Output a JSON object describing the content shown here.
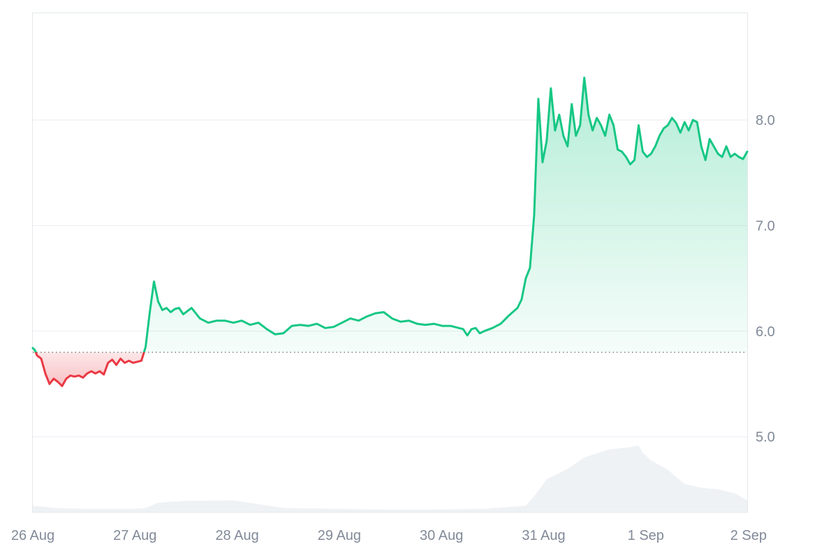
{
  "chart_data": {
    "type": "area",
    "title": "",
    "xlabel": "",
    "ylabel": "",
    "x_ticks": [
      "26 Aug",
      "27 Aug",
      "28 Aug",
      "29 Aug",
      "30 Aug",
      "31 Aug",
      "1 Sep",
      "2 Sep"
    ],
    "y_ticks": [
      "5.0",
      "6.0",
      "7.0",
      "8.0"
    ],
    "ylim": [
      4.3,
      9.0
    ],
    "y_axis_position": "right",
    "grid": "horizontal",
    "baseline": 5.8,
    "colors": {
      "above_line": "#16c784",
      "above_fill": "#16c784",
      "below_line": "#ea3943",
      "below_fill": "#ea3943",
      "grid": "#eceef2",
      "border": "#e5e7eb",
      "baseline": "#555555",
      "volume": "#eff2f5",
      "tick_text": "#818a98"
    },
    "series": [
      {
        "values": [
          [
            "2024-08-26 00:00",
            5.84
          ],
          [
            "2024-08-26 00:30",
            5.82
          ],
          [
            "2024-08-26 01:00",
            5.77
          ],
          [
            "2024-08-26 02:00",
            5.74
          ],
          [
            "2024-08-26 03:00",
            5.6
          ],
          [
            "2024-08-26 04:00",
            5.5
          ],
          [
            "2024-08-26 05:00",
            5.55
          ],
          [
            "2024-08-26 06:00",
            5.52
          ],
          [
            "2024-08-26 07:00",
            5.48
          ],
          [
            "2024-08-26 08:00",
            5.55
          ],
          [
            "2024-08-26 09:00",
            5.58
          ],
          [
            "2024-08-26 10:00",
            5.57
          ],
          [
            "2024-08-26 11:00",
            5.58
          ],
          [
            "2024-08-26 12:00",
            5.56
          ],
          [
            "2024-08-26 13:00",
            5.6
          ],
          [
            "2024-08-26 14:00",
            5.62
          ],
          [
            "2024-08-26 15:00",
            5.6
          ],
          [
            "2024-08-26 16:00",
            5.62
          ],
          [
            "2024-08-26 17:00",
            5.59
          ],
          [
            "2024-08-26 18:00",
            5.7
          ],
          [
            "2024-08-26 19:00",
            5.73
          ],
          [
            "2024-08-26 20:00",
            5.68
          ],
          [
            "2024-08-26 21:00",
            5.74
          ],
          [
            "2024-08-26 22:00",
            5.7
          ],
          [
            "2024-08-26 23:00",
            5.72
          ],
          [
            "2024-08-27 00:00",
            5.7
          ],
          [
            "2024-08-27 01:00",
            5.71
          ],
          [
            "2024-08-27 02:00",
            5.72
          ],
          [
            "2024-08-27 03:00",
            5.85
          ],
          [
            "2024-08-27 04:00",
            6.18
          ],
          [
            "2024-08-27 05:00",
            6.47
          ],
          [
            "2024-08-27 06:00",
            6.28
          ],
          [
            "2024-08-27 07:00",
            6.2
          ],
          [
            "2024-08-27 08:00",
            6.22
          ],
          [
            "2024-08-27 09:00",
            6.18
          ],
          [
            "2024-08-27 10:00",
            6.21
          ],
          [
            "2024-08-27 11:00",
            6.22
          ],
          [
            "2024-08-27 12:00",
            6.16
          ],
          [
            "2024-08-27 14:00",
            6.22
          ],
          [
            "2024-08-27 16:00",
            6.12
          ],
          [
            "2024-08-27 18:00",
            6.08
          ],
          [
            "2024-08-27 20:00",
            6.1
          ],
          [
            "2024-08-27 22:00",
            6.1
          ],
          [
            "2024-08-28 00:00",
            6.08
          ],
          [
            "2024-08-28 02:00",
            6.1
          ],
          [
            "2024-08-28 04:00",
            6.06
          ],
          [
            "2024-08-28 06:00",
            6.08
          ],
          [
            "2024-08-28 08:00",
            6.02
          ],
          [
            "2024-08-28 10:00",
            5.97
          ],
          [
            "2024-08-28 12:00",
            5.98
          ],
          [
            "2024-08-28 14:00",
            6.05
          ],
          [
            "2024-08-28 16:00",
            6.06
          ],
          [
            "2024-08-28 18:00",
            6.05
          ],
          [
            "2024-08-28 20:00",
            6.07
          ],
          [
            "2024-08-28 22:00",
            6.03
          ],
          [
            "2024-08-29 00:00",
            6.04
          ],
          [
            "2024-08-29 02:00",
            6.08
          ],
          [
            "2024-08-29 04:00",
            6.12
          ],
          [
            "2024-08-29 06:00",
            6.1
          ],
          [
            "2024-08-29 08:00",
            6.14
          ],
          [
            "2024-08-29 10:00",
            6.17
          ],
          [
            "2024-08-29 12:00",
            6.18
          ],
          [
            "2024-08-29 14:00",
            6.12
          ],
          [
            "2024-08-29 16:00",
            6.09
          ],
          [
            "2024-08-29 18:00",
            6.1
          ],
          [
            "2024-08-29 20:00",
            6.07
          ],
          [
            "2024-08-29 22:00",
            6.06
          ],
          [
            "2024-08-30 00:00",
            6.07
          ],
          [
            "2024-08-30 02:00",
            6.05
          ],
          [
            "2024-08-30 04:00",
            6.05
          ],
          [
            "2024-08-30 06:00",
            6.03
          ],
          [
            "2024-08-30 07:00",
            6.02
          ],
          [
            "2024-08-30 08:00",
            5.96
          ],
          [
            "2024-08-30 09:00",
            6.02
          ],
          [
            "2024-08-30 10:00",
            6.03
          ],
          [
            "2024-08-30 11:00",
            5.98
          ],
          [
            "2024-08-30 12:00",
            6.0
          ],
          [
            "2024-08-30 14:00",
            6.03
          ],
          [
            "2024-08-30 16:00",
            6.07
          ],
          [
            "2024-08-30 18:00",
            6.15
          ],
          [
            "2024-08-30 20:00",
            6.22
          ],
          [
            "2024-08-30 21:00",
            6.3
          ],
          [
            "2024-08-30 22:00",
            6.5
          ],
          [
            "2024-08-30 23:00",
            6.6
          ],
          [
            "2024-08-31 00:00",
            7.1
          ],
          [
            "2024-08-31 01:00",
            8.2
          ],
          [
            "2024-08-31 02:00",
            7.6
          ],
          [
            "2024-08-31 03:00",
            7.8
          ],
          [
            "2024-08-31 04:00",
            8.3
          ],
          [
            "2024-08-31 05:00",
            7.9
          ],
          [
            "2024-08-31 06:00",
            8.05
          ],
          [
            "2024-08-31 07:00",
            7.85
          ],
          [
            "2024-08-31 08:00",
            7.75
          ],
          [
            "2024-08-31 09:00",
            8.15
          ],
          [
            "2024-08-31 10:00",
            7.85
          ],
          [
            "2024-08-31 11:00",
            7.95
          ],
          [
            "2024-08-31 12:00",
            8.4
          ],
          [
            "2024-08-31 13:00",
            8.05
          ],
          [
            "2024-08-31 14:00",
            7.9
          ],
          [
            "2024-08-31 15:00",
            8.02
          ],
          [
            "2024-08-31 16:00",
            7.95
          ],
          [
            "2024-08-31 17:00",
            7.85
          ],
          [
            "2024-08-31 18:00",
            8.05
          ],
          [
            "2024-08-31 19:00",
            7.95
          ],
          [
            "2024-08-31 20:00",
            7.72
          ],
          [
            "2024-08-31 21:00",
            7.7
          ],
          [
            "2024-08-31 22:00",
            7.65
          ],
          [
            "2024-08-31 23:00",
            7.58
          ],
          [
            "2024-09-01 00:00",
            7.62
          ],
          [
            "2024-09-01 01:00",
            7.95
          ],
          [
            "2024-09-01 02:00",
            7.7
          ],
          [
            "2024-09-01 03:00",
            7.65
          ],
          [
            "2024-09-01 04:00",
            7.68
          ],
          [
            "2024-09-01 05:00",
            7.75
          ],
          [
            "2024-09-01 06:00",
            7.85
          ],
          [
            "2024-09-01 07:00",
            7.92
          ],
          [
            "2024-09-01 08:00",
            7.95
          ],
          [
            "2024-09-01 09:00",
            8.02
          ],
          [
            "2024-09-01 10:00",
            7.97
          ],
          [
            "2024-09-01 11:00",
            7.88
          ],
          [
            "2024-09-01 12:00",
            7.98
          ],
          [
            "2024-09-01 13:00",
            7.9
          ],
          [
            "2024-09-01 14:00",
            8.0
          ],
          [
            "2024-09-01 15:00",
            7.98
          ],
          [
            "2024-09-01 16:00",
            7.75
          ],
          [
            "2024-09-01 17:00",
            7.62
          ],
          [
            "2024-09-01 18:00",
            7.82
          ],
          [
            "2024-09-01 19:00",
            7.75
          ],
          [
            "2024-09-01 20:00",
            7.68
          ],
          [
            "2024-09-01 21:00",
            7.65
          ],
          [
            "2024-09-01 22:00",
            7.75
          ],
          [
            "2024-09-01 23:00",
            7.65
          ],
          [
            "2024-09-02 00:00",
            7.68
          ],
          [
            "2024-09-02 01:00",
            7.65
          ],
          [
            "2024-09-02 02:00",
            7.63
          ],
          [
            "2024-09-02 03:00",
            7.7
          ]
        ]
      }
    ],
    "volume_relative": [
      [
        "2024-08-26 00:00",
        0.08
      ],
      [
        "2024-08-26 06:00",
        0.05
      ],
      [
        "2024-08-26 12:00",
        0.04
      ],
      [
        "2024-08-27 00:00",
        0.04
      ],
      [
        "2024-08-27 03:00",
        0.05
      ],
      [
        "2024-08-27 06:00",
        0.12
      ],
      [
        "2024-08-27 12:00",
        0.14
      ],
      [
        "2024-08-28 00:00",
        0.15
      ],
      [
        "2024-08-28 06:00",
        0.1
      ],
      [
        "2024-08-28 12:00",
        0.05
      ],
      [
        "2024-08-29 00:00",
        0.04
      ],
      [
        "2024-08-29 12:00",
        0.03
      ],
      [
        "2024-08-30 00:00",
        0.03
      ],
      [
        "2024-08-30 12:00",
        0.04
      ],
      [
        "2024-08-30 22:00",
        0.08
      ],
      [
        "2024-08-31 00:00",
        0.2
      ],
      [
        "2024-08-31 03:00",
        0.42
      ],
      [
        "2024-08-31 08:00",
        0.55
      ],
      [
        "2024-08-31 12:00",
        0.7
      ],
      [
        "2024-08-31 18:00",
        0.8
      ],
      [
        "2024-08-31 23:00",
        0.83
      ],
      [
        "2024-09-01 01:00",
        0.85
      ],
      [
        "2024-09-01 02:00",
        0.76
      ],
      [
        "2024-09-01 04:00",
        0.66
      ],
      [
        "2024-09-01 08:00",
        0.54
      ],
      [
        "2024-09-01 12:00",
        0.36
      ],
      [
        "2024-09-01 16:00",
        0.31
      ],
      [
        "2024-09-01 20:00",
        0.29
      ],
      [
        "2024-09-02 00:00",
        0.24
      ],
      [
        "2024-09-02 03:00",
        0.15
      ]
    ]
  }
}
